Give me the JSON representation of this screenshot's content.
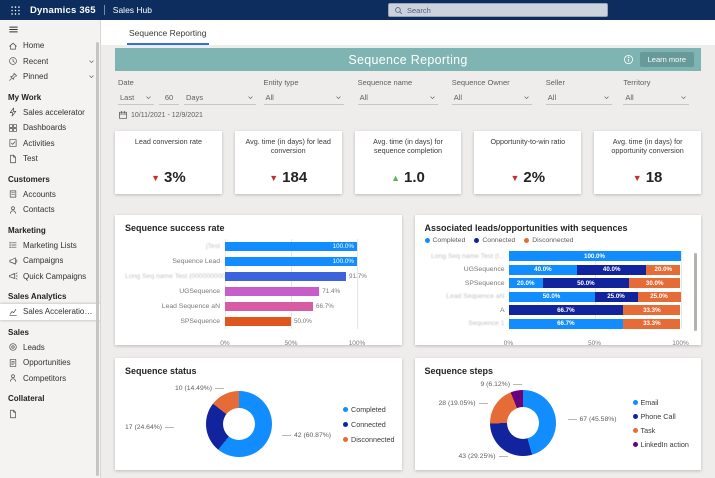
{
  "topbar": {
    "brand": "Dynamics 365",
    "app": "Sales Hub",
    "search_placeholder": "Search"
  },
  "tab": {
    "label": "Sequence Reporting"
  },
  "banner": {
    "title": "Sequence Reporting",
    "learn_more": "Learn more"
  },
  "sidebar": {
    "sections": [
      {
        "items": [
          {
            "label": "Home",
            "icon": "home"
          },
          {
            "label": "Recent",
            "icon": "clock",
            "chevron": true
          },
          {
            "label": "Pinned",
            "icon": "pin",
            "chevron": true
          }
        ]
      },
      {
        "title": "My Work",
        "items": [
          {
            "label": "Sales accelerator",
            "icon": "accelerator"
          },
          {
            "label": "Dashboards",
            "icon": "dashboards"
          },
          {
            "label": "Activities",
            "icon": "activities"
          },
          {
            "label": "Test",
            "icon": "page"
          }
        ]
      },
      {
        "title": "Customers",
        "items": [
          {
            "label": "Accounts",
            "icon": "building"
          },
          {
            "label": "Contacts",
            "icon": "person"
          }
        ]
      },
      {
        "title": "Marketing",
        "items": [
          {
            "label": "Marketing Lists",
            "icon": "list"
          },
          {
            "label": "Campaigns",
            "icon": "megaphone"
          },
          {
            "label": "Quick Campaigns",
            "icon": "megaphone-fast"
          }
        ]
      },
      {
        "title": "Sales Analytics",
        "items": [
          {
            "label": "Sales Acceleration...",
            "icon": "chart",
            "selected": true
          }
        ]
      },
      {
        "title": "Sales",
        "items": [
          {
            "label": "Leads",
            "icon": "target"
          },
          {
            "label": "Opportunities",
            "icon": "doc-check"
          },
          {
            "label": "Competitors",
            "icon": "person"
          }
        ]
      },
      {
        "title": "Collateral",
        "items": [
          {
            "label": "",
            "icon": "page"
          }
        ]
      }
    ]
  },
  "filters": {
    "date": {
      "label": "Date",
      "op": "Last",
      "num": "60",
      "unit": "Days",
      "range": "10/11/2021 - 12/9/2021"
    },
    "items": [
      {
        "label": "Entity type",
        "value": "All"
      },
      {
        "label": "Sequence name",
        "value": "All"
      },
      {
        "label": "Sequence Owner",
        "value": "All"
      },
      {
        "label": "Seller",
        "value": "All"
      },
      {
        "label": "Territory",
        "value": "All"
      }
    ]
  },
  "kpis": [
    {
      "title": "Lead conversion rate",
      "value": "3%",
      "direction": "down"
    },
    {
      "title": "Avg. time (in days) for lead conversion",
      "value": "184",
      "direction": "down"
    },
    {
      "title": "Avg. time (in days) for sequence completion",
      "value": "1.0",
      "direction": "up"
    },
    {
      "title": "Opportunity-to-win ratio",
      "value": "2%",
      "direction": "down"
    },
    {
      "title": "Avg. time (in days) for opportunity conversion",
      "value": "18",
      "direction": "down"
    }
  ],
  "trend_colors": {
    "down": "#C5312F",
    "up": "#57B65B"
  },
  "chart_data": [
    {
      "type": "bar",
      "title": "Sequence success rate",
      "orientation": "horizontal",
      "xlim": [
        0,
        100
      ],
      "x_ticks": [
        "0%",
        "50%",
        "100%"
      ],
      "items": [
        {
          "label": "jTest",
          "muted": true,
          "value": 100.0,
          "display": "100.0%",
          "color": "#118DFF"
        },
        {
          "label": "Sequence Lead",
          "value": 100.0,
          "display": "100.0%",
          "color": "#118DFF"
        },
        {
          "label": "Long Seq name Test (000000000000...",
          "muted": true,
          "value": 91.7,
          "display": "91.7%",
          "color": "#3A63DC"
        },
        {
          "label": "UGSequence",
          "value": 71.4,
          "display": "71.4%",
          "color": "#C75DC8"
        },
        {
          "label": "Lead Sequence aN",
          "value": 66.7,
          "display": "66.7%",
          "color": "#D75CA4"
        },
        {
          "label": "SPSequence",
          "value": 50.0,
          "display": "50.0%",
          "color": "#E0571E"
        }
      ]
    },
    {
      "type": "stacked-bar",
      "title": "Associated leads/opportunities with sequences",
      "x_ticks": [
        "0%",
        "50%",
        "100%"
      ],
      "legend": [
        {
          "name": "Completed",
          "color": "#118DFF"
        },
        {
          "name": "Connected",
          "color": "#12239E"
        },
        {
          "name": "Disconnected",
          "color": "#E66C37"
        }
      ],
      "rows": [
        {
          "label": "Long Seq name Test (l...",
          "muted": true,
          "segments": [
            {
              "series": "Completed",
              "value": 100.0,
              "display": "100.0%"
            }
          ]
        },
        {
          "label": "UGSequence",
          "segments": [
            {
              "series": "Completed",
              "value": 40.0,
              "display": "40.0%"
            },
            {
              "series": "Connected",
              "value": 40.0,
              "display": "40.0%"
            },
            {
              "series": "Disconnected",
              "value": 20.0,
              "display": "20.0%"
            }
          ]
        },
        {
          "label": "SPSequence",
          "segments": [
            {
              "series": "Completed",
              "value": 20.0,
              "display": "20.0%"
            },
            {
              "series": "Connected",
              "value": 50.0,
              "display": "50.0%"
            },
            {
              "series": "Disconnected",
              "value": 30.0,
              "display": "30.0%"
            }
          ]
        },
        {
          "label": "Lead Sequence aN",
          "muted": true,
          "segments": [
            {
              "series": "Completed",
              "value": 50.0,
              "display": "50.0%"
            },
            {
              "series": "Connected",
              "value": 25.0,
              "display": "25.0%"
            },
            {
              "series": "Disconnected",
              "value": 25.0,
              "display": "25.0%"
            }
          ]
        },
        {
          "label": "A",
          "segments": [
            {
              "series": "Connected",
              "value": 66.7,
              "display": "66.7%"
            },
            {
              "series": "Disconnected",
              "value": 33.3,
              "display": "33.3%"
            }
          ]
        },
        {
          "label": "Sequence 1",
          "muted": true,
          "segments": [
            {
              "series": "Completed",
              "value": 66.7,
              "display": "66.7%"
            },
            {
              "series": "Disconnected",
              "value": 33.3,
              "display": "33.3%"
            }
          ]
        }
      ]
    },
    {
      "type": "donut",
      "title": "Sequence status",
      "slices": [
        {
          "name": "Completed",
          "value": 42,
          "pct": 60.87,
          "display": "42 (60.87%)",
          "color": "#118DFF"
        },
        {
          "name": "Connected",
          "value": 17,
          "pct": 24.64,
          "display": "17 (24.64%)",
          "color": "#12239E"
        },
        {
          "name": "Disconnected",
          "value": 10,
          "pct": 14.49,
          "display": "10 (14.49%)",
          "color": "#E66C37"
        }
      ]
    },
    {
      "type": "donut",
      "title": "Sequence steps",
      "slices": [
        {
          "name": "Email",
          "value": 67,
          "pct": 45.58,
          "display": "67 (45.58%)",
          "color": "#118DFF"
        },
        {
          "name": "Phone Call",
          "value": 43,
          "pct": 29.25,
          "display": "43 (29.25%)",
          "color": "#12239E"
        },
        {
          "name": "Task",
          "value": 28,
          "pct": 19.05,
          "display": "28 (19.05%)",
          "color": "#E66C37"
        },
        {
          "name": "LinkedIn action",
          "value": 9,
          "pct": 6.12,
          "display": "9 (6.12%)",
          "color": "#6B007B"
        }
      ]
    }
  ]
}
